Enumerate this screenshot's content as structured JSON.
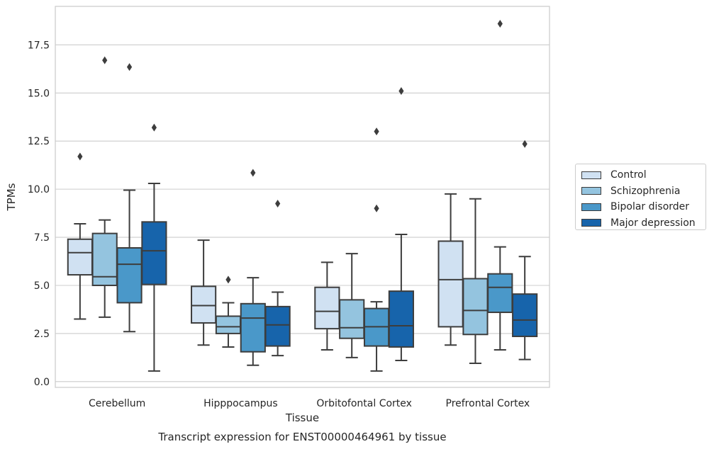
{
  "chart_data": {
    "type": "box",
    "title": "Transcript expression for ENST00000464961 by tissue",
    "xlabel": "Tissue",
    "ylabel": "TPMs",
    "ylim": [
      -0.3,
      19.5
    ],
    "yticks": [
      0.0,
      2.5,
      5.0,
      7.5,
      10.0,
      12.5,
      15.0,
      17.5
    ],
    "ytick_labels": [
      "0.0",
      "2.5",
      "5.0",
      "7.5",
      "10.0",
      "12.5",
      "15.0",
      "17.5"
    ],
    "categories": [
      "Cerebellum",
      "Hipppocampus",
      "Orbitofontal Cortex",
      "Prefrontal Cortex"
    ],
    "grid": "horizontal",
    "legend_position": "right",
    "series": [
      {
        "name": "Control",
        "color": "#d0e1f2",
        "boxes": [
          {
            "whislo": 3.25,
            "q1": 5.55,
            "med": 6.7,
            "q3": 7.4,
            "whishi": 8.2,
            "fliers": [
              11.7
            ]
          },
          {
            "whislo": 1.9,
            "q1": 3.05,
            "med": 3.95,
            "q3": 4.95,
            "whishi": 7.35,
            "fliers": []
          },
          {
            "whislo": 1.65,
            "q1": 2.75,
            "med": 3.65,
            "q3": 4.9,
            "whishi": 6.2,
            "fliers": []
          },
          {
            "whislo": 1.9,
            "q1": 2.85,
            "med": 5.3,
            "q3": 7.3,
            "whishi": 9.75,
            "fliers": []
          }
        ]
      },
      {
        "name": "Schizophrenia",
        "color": "#94c4df",
        "boxes": [
          {
            "whislo": 3.35,
            "q1": 5.0,
            "med": 5.45,
            "q3": 7.7,
            "whishi": 8.4,
            "fliers": [
              16.7
            ]
          },
          {
            "whislo": 1.8,
            "q1": 2.5,
            "med": 2.85,
            "q3": 3.4,
            "whishi": 4.1,
            "fliers": [
              5.3
            ]
          },
          {
            "whislo": 1.25,
            "q1": 2.25,
            "med": 2.8,
            "q3": 4.25,
            "whishi": 6.65,
            "fliers": []
          },
          {
            "whislo": 0.95,
            "q1": 2.45,
            "med": 3.7,
            "q3": 5.35,
            "whishi": 9.5,
            "fliers": []
          }
        ]
      },
      {
        "name": "Bipolar disorder",
        "color": "#4a98c9",
        "boxes": [
          {
            "whislo": 2.6,
            "q1": 4.1,
            "med": 6.1,
            "q3": 6.95,
            "whishi": 9.95,
            "fliers": [
              16.35
            ]
          },
          {
            "whislo": 0.85,
            "q1": 1.55,
            "med": 3.3,
            "q3": 4.05,
            "whishi": 5.4,
            "fliers": [
              10.85
            ]
          },
          {
            "whislo": 0.55,
            "q1": 1.85,
            "med": 2.85,
            "q3": 3.8,
            "whishi": 4.15,
            "fliers": [
              9.0,
              13.0
            ]
          },
          {
            "whislo": 1.65,
            "q1": 3.6,
            "med": 4.9,
            "q3": 5.6,
            "whishi": 7.0,
            "fliers": [
              18.6
            ]
          }
        ]
      },
      {
        "name": "Major depression",
        "color": "#1764ab",
        "boxes": [
          {
            "whislo": 0.55,
            "q1": 5.05,
            "med": 6.8,
            "q3": 8.3,
            "whishi": 10.3,
            "fliers": [
              13.2
            ]
          },
          {
            "whislo": 1.35,
            "q1": 1.85,
            "med": 2.95,
            "q3": 3.9,
            "whishi": 4.65,
            "fliers": [
              9.25
            ]
          },
          {
            "whislo": 1.1,
            "q1": 1.8,
            "med": 2.9,
            "q3": 4.7,
            "whishi": 7.65,
            "fliers": [
              15.1
            ]
          },
          {
            "whislo": 1.15,
            "q1": 2.35,
            "med": 3.2,
            "q3": 4.55,
            "whishi": 6.5,
            "fliers": [
              12.35
            ]
          }
        ]
      }
    ]
  }
}
